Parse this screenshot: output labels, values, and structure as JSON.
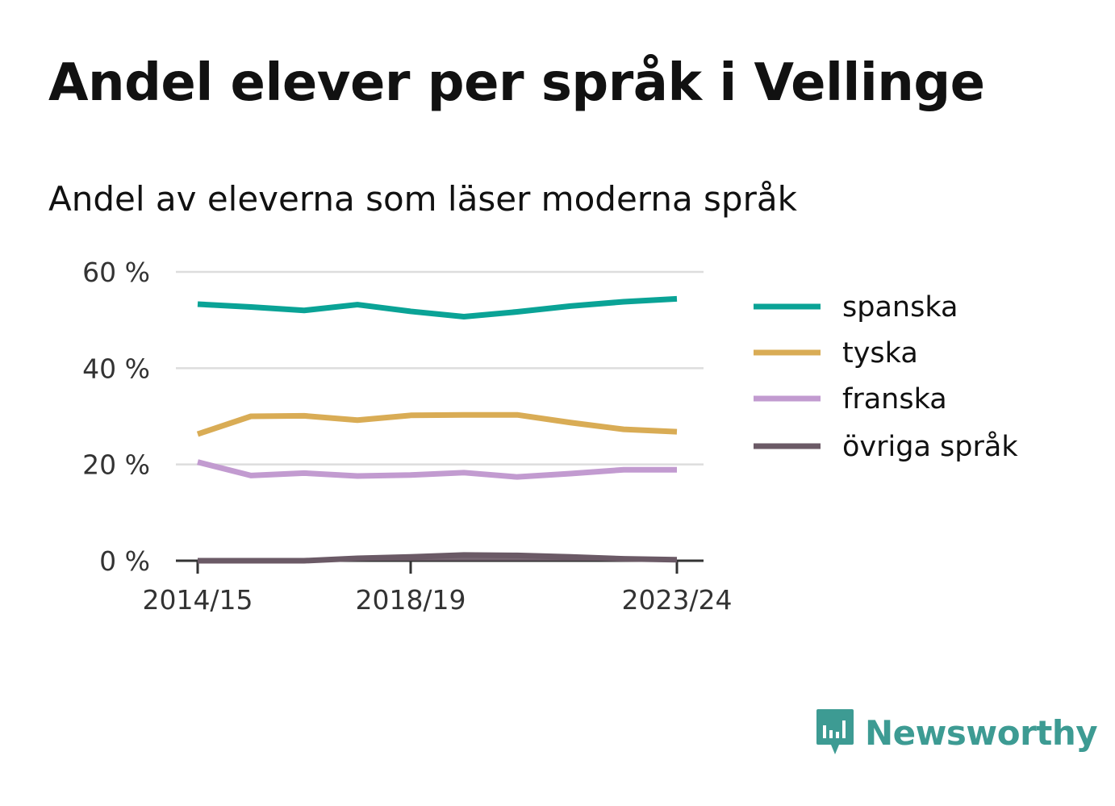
{
  "title": "Andel elever per språk i Vellinge",
  "subtitle": "Andel av eleverna som läser moderna språk",
  "brand": {
    "name": "Newsworthy",
    "icon": "newsworthy-logo-icon",
    "color": "#3d9b93"
  },
  "chart_data": {
    "type": "line",
    "x": [
      "2014/15",
      "2015/16",
      "2016/17",
      "2017/18",
      "2018/19",
      "2019/20",
      "2020/21",
      "2021/22",
      "2022/23",
      "2023/24"
    ],
    "x_tick_labels": [
      "2014/15",
      "2018/19",
      "2023/24"
    ],
    "y_ticks": [
      0,
      20,
      40,
      60
    ],
    "y_tick_labels": [
      "0 %",
      "20 %",
      "40 %",
      "60 %"
    ],
    "ylim": [
      0,
      60
    ],
    "unit": "%",
    "grid": true,
    "legend_position": "right",
    "series": [
      {
        "name": "spanska",
        "color": "#0aa396",
        "values": [
          53.3,
          52.7,
          52.0,
          53.2,
          51.8,
          50.7,
          51.7,
          52.9,
          53.8,
          54.4
        ]
      },
      {
        "name": "tyska",
        "color": "#d9ac55",
        "values": [
          26.3,
          30.0,
          30.1,
          29.2,
          30.2,
          30.3,
          30.3,
          28.7,
          27.3,
          26.8
        ]
      },
      {
        "name": "franska",
        "color": "#c29bd0",
        "values": [
          20.5,
          17.7,
          18.2,
          17.6,
          17.8,
          18.3,
          17.4,
          18.1,
          18.9,
          18.9
        ]
      },
      {
        "name": "övriga språk",
        "color": "#6b5a66",
        "values": [
          0.0,
          0.0,
          0.0,
          0.5,
          0.8,
          1.2,
          1.1,
          0.8,
          0.4,
          0.2
        ]
      }
    ]
  }
}
